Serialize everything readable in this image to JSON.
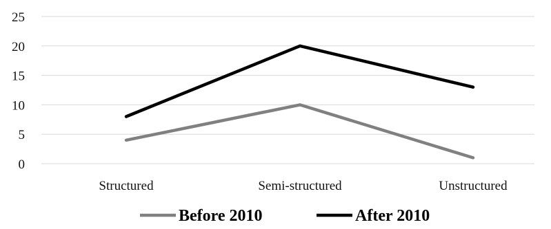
{
  "chart_data": {
    "type": "line",
    "categories": [
      "Structured",
      "Semi-structured",
      "Unstructured"
    ],
    "series": [
      {
        "name": "Before 2010",
        "values": [
          4,
          10,
          1
        ],
        "color": "#808080"
      },
      {
        "name": "After 2010",
        "values": [
          8,
          20,
          13
        ],
        "color": "#000000"
      }
    ],
    "ylim": [
      0,
      25
    ],
    "yticks": [
      "0",
      "5",
      "10",
      "15",
      "20",
      "25"
    ],
    "grid": true,
    "legend_position": "bottom",
    "title": "",
    "xlabel": "",
    "ylabel": ""
  }
}
